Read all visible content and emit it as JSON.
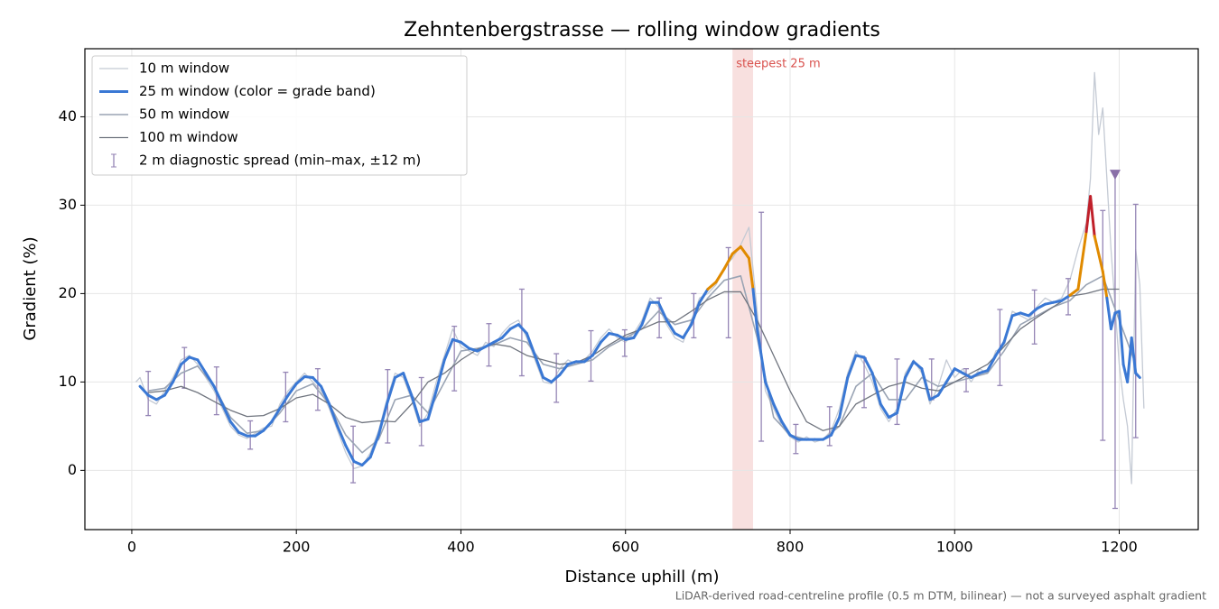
{
  "chart_data": {
    "type": "line",
    "title": "Zehntenbergstrasse — rolling window gradients",
    "x_label": "Distance uphill (m)",
    "y_label": "Gradient (%)",
    "footnote": "LiDAR-derived road-centreline profile (0.5 m DTM, bilinear) — not a surveyed asphalt gradient",
    "xlim": [
      -57,
      1296
    ],
    "ylim": [
      -6.7,
      47.7
    ],
    "xticks": [
      0,
      200,
      400,
      600,
      800,
      1000,
      1200
    ],
    "yticks": [
      0,
      10,
      20,
      30,
      40
    ],
    "grid": true,
    "legend": "upper left",
    "highlight": {
      "label": "steepest 25 m",
      "x0": 730,
      "x1": 755,
      "color": "#d9534f"
    },
    "marker": {
      "x": 1195,
      "y": 33.5,
      "color": "#8a70a8"
    },
    "series": [
      {
        "name": "10 m window",
        "color": "#c4cad4",
        "width": 1.3,
        "x": [
          5,
          10,
          20,
          30,
          40,
          50,
          60,
          70,
          80,
          90,
          100,
          110,
          120,
          130,
          140,
          150,
          160,
          170,
          180,
          190,
          200,
          210,
          220,
          230,
          240,
          250,
          260,
          270,
          280,
          290,
          300,
          310,
          320,
          330,
          340,
          350,
          360,
          370,
          380,
          390,
          400,
          410,
          420,
          430,
          440,
          450,
          460,
          470,
          480,
          490,
          500,
          510,
          520,
          530,
          540,
          550,
          560,
          570,
          580,
          590,
          600,
          610,
          620,
          630,
          640,
          650,
          660,
          670,
          680,
          690,
          700,
          710,
          720,
          730,
          740,
          750,
          760,
          770,
          780,
          790,
          800,
          810,
          820,
          830,
          840,
          850,
          860,
          870,
          880,
          890,
          900,
          910,
          920,
          930,
          940,
          950,
          960,
          970,
          980,
          990,
          1000,
          1010,
          1020,
          1030,
          1040,
          1050,
          1060,
          1070,
          1080,
          1090,
          1100,
          1110,
          1120,
          1130,
          1140,
          1150,
          1160,
          1165,
          1170,
          1175,
          1180,
          1190,
          1200,
          1205,
          1210,
          1215,
          1220,
          1225,
          1230
        ],
        "values": [
          10,
          10.5,
          8,
          7.5,
          9,
          10.5,
          12.5,
          13,
          12,
          10.5,
          9,
          7,
          5,
          4,
          3.6,
          4.2,
          4.8,
          5,
          7.5,
          9,
          10,
          11,
          10,
          9,
          7,
          4.5,
          2,
          0.2,
          0.5,
          2,
          4.5,
          8,
          11,
          10.5,
          8,
          5,
          6.5,
          10,
          13,
          16,
          14,
          13.5,
          13,
          14.5,
          14,
          15.5,
          16.5,
          17,
          15,
          12.5,
          10,
          9.8,
          11.5,
          12.5,
          12,
          12.5,
          13.5,
          15,
          16,
          15,
          14.5,
          15.5,
          17,
          19.5,
          18.5,
          16.5,
          15,
          14.5,
          17,
          19.5,
          20,
          21,
          23,
          24,
          25.5,
          27.5,
          18,
          9,
          7,
          5,
          3.8,
          3.2,
          3.8,
          3.2,
          3.5,
          4.5,
          7,
          11,
          13.5,
          12,
          10,
          7,
          5.5,
          7,
          11,
          12.5,
          11,
          7.5,
          9.5,
          12.5,
          10.5,
          11.5,
          10,
          11.5,
          11,
          13.5,
          14,
          18,
          17.5,
          17,
          18.5,
          19.5,
          19,
          19.5,
          21.5,
          25,
          28,
          33,
          45,
          38,
          41,
          25,
          12,
          8,
          5,
          -1.5,
          25,
          21,
          7
        ]
      },
      {
        "name": "25 m window (color = grade band)",
        "color": "#3a78d4",
        "width": 3,
        "bands": [
          {
            "below": 20,
            "color": "#3a78d4"
          },
          {
            "below": 25,
            "color": "#e08a00"
          },
          {
            "color": "#c0202a"
          }
        ],
        "x": [
          10,
          20,
          30,
          40,
          50,
          60,
          70,
          80,
          90,
          100,
          110,
          120,
          130,
          140,
          150,
          160,
          170,
          180,
          190,
          200,
          210,
          220,
          230,
          240,
          250,
          260,
          270,
          280,
          290,
          300,
          310,
          320,
          330,
          340,
          350,
          360,
          370,
          380,
          390,
          400,
          410,
          420,
          430,
          440,
          450,
          460,
          470,
          480,
          490,
          500,
          510,
          520,
          530,
          540,
          550,
          560,
          570,
          580,
          590,
          600,
          610,
          620,
          630,
          640,
          650,
          660,
          670,
          680,
          690,
          700,
          710,
          720,
          730,
          740,
          750,
          755,
          760,
          770,
          780,
          790,
          800,
          810,
          820,
          830,
          840,
          850,
          860,
          870,
          880,
          890,
          900,
          910,
          920,
          930,
          940,
          950,
          960,
          970,
          980,
          990,
          1000,
          1010,
          1020,
          1030,
          1040,
          1050,
          1060,
          1070,
          1080,
          1090,
          1100,
          1110,
          1120,
          1130,
          1140,
          1150,
          1160,
          1165,
          1170,
          1180,
          1185,
          1190,
          1195,
          1200,
          1205,
          1210,
          1215,
          1220,
          1225
        ],
        "values": [
          9.5,
          8.5,
          8,
          8.5,
          10,
          12,
          12.8,
          12.5,
          11,
          9.5,
          7.5,
          5.5,
          4.3,
          3.9,
          3.9,
          4.5,
          5.5,
          7,
          8.5,
          9.8,
          10.6,
          10.5,
          9.5,
          7.5,
          5,
          2.8,
          1,
          0.6,
          1.5,
          4,
          7.5,
          10.5,
          11,
          8.5,
          5.5,
          5.8,
          9,
          12.5,
          14.8,
          14.5,
          13.8,
          13.5,
          14,
          14.5,
          15,
          16,
          16.5,
          15.5,
          13,
          10.5,
          10,
          10.8,
          12,
          12.3,
          12.3,
          13,
          14.5,
          15.5,
          15.3,
          14.8,
          15,
          16.5,
          19,
          19,
          17,
          15.5,
          15,
          16.5,
          19,
          20.5,
          21.3,
          22.8,
          24.5,
          25.3,
          24,
          20.5,
          16,
          10,
          7.5,
          5.5,
          4,
          3.5,
          3.5,
          3.5,
          3.5,
          4,
          6,
          10.5,
          13,
          12.8,
          11,
          7.5,
          6,
          6.5,
          10.5,
          12.3,
          11.5,
          8,
          8.5,
          10,
          11.5,
          11,
          10.5,
          11,
          11.3,
          13,
          14.5,
          17.5,
          17.8,
          17.5,
          18.3,
          18.8,
          19,
          19.2,
          19.8,
          20.5,
          27,
          31,
          26.5,
          22.5,
          19.5,
          16,
          17.8,
          18,
          12,
          10,
          15,
          11,
          10.5
        ]
      },
      {
        "name": "50 m window",
        "color": "#9aa4b4",
        "width": 1.6,
        "x": [
          20,
          40,
          60,
          80,
          100,
          120,
          140,
          160,
          180,
          200,
          220,
          240,
          260,
          280,
          300,
          320,
          340,
          360,
          380,
          400,
          420,
          440,
          460,
          480,
          500,
          520,
          540,
          560,
          580,
          600,
          620,
          640,
          660,
          680,
          700,
          720,
          740,
          760,
          780,
          800,
          820,
          840,
          860,
          880,
          900,
          920,
          940,
          960,
          980,
          1000,
          1020,
          1040,
          1060,
          1080,
          1100,
          1120,
          1140,
          1160,
          1180,
          1200,
          1220
        ],
        "values": [
          9,
          9.3,
          11,
          11.8,
          9.5,
          6,
          4.2,
          4.5,
          6.5,
          9,
          9.8,
          7.5,
          4,
          2,
          3.5,
          8,
          8.5,
          6.5,
          10,
          13.5,
          13.8,
          14.2,
          15,
          14.5,
          12,
          11.5,
          12,
          12.5,
          14,
          15,
          16,
          18,
          16.5,
          17,
          19.5,
          21.5,
          22,
          15,
          6,
          4,
          3.5,
          3.5,
          5,
          9.5,
          11,
          8,
          8,
          10.5,
          9.5,
          10,
          10.5,
          11,
          13.5,
          16.5,
          17.5,
          18.5,
          19.2,
          21,
          22,
          17,
          12
        ]
      },
      {
        "name": "100 m window",
        "color": "#70757f",
        "width": 1.3,
        "x": [
          20,
          40,
          60,
          80,
          100,
          120,
          140,
          160,
          180,
          200,
          220,
          240,
          260,
          280,
          300,
          320,
          340,
          360,
          380,
          400,
          420,
          440,
          460,
          480,
          500,
          520,
          540,
          560,
          580,
          600,
          620,
          640,
          660,
          680,
          700,
          720,
          740,
          760,
          780,
          800,
          820,
          840,
          860,
          880,
          900,
          920,
          940,
          960,
          980,
          1000,
          1020,
          1040,
          1060,
          1080,
          1100,
          1120,
          1140,
          1160,
          1180,
          1200
        ],
        "values": [
          8.8,
          9,
          9.5,
          8.8,
          7.8,
          6.8,
          6.1,
          6.2,
          7,
          8.2,
          8.6,
          7.5,
          6,
          5.4,
          5.6,
          5.5,
          7.5,
          10,
          11,
          12.5,
          13.7,
          14.3,
          14,
          13,
          12.5,
          12,
          12.2,
          13,
          14.2,
          15.3,
          16,
          16.8,
          16.8,
          18,
          19.3,
          20.2,
          20.2,
          17,
          13,
          9,
          5.5,
          4.5,
          5,
          7.5,
          8.5,
          9.5,
          10,
          9.3,
          9,
          10,
          11,
          12,
          14,
          16,
          17.3,
          18.5,
          19.7,
          20,
          20.5,
          20.5
        ]
      },
      {
        "name": "2 m diagnostic spread (min–max, ±12 m)",
        "color": "#9585b5",
        "kind": "errorbar",
        "x": [
          20,
          64,
          103,
          144,
          187,
          226,
          269,
          311,
          352,
          392,
          434,
          474,
          516,
          558,
          599,
          641,
          683,
          725,
          765,
          807,
          848,
          890,
          930,
          972,
          1014,
          1055,
          1097,
          1138,
          1180,
          1195,
          1220
        ],
        "low": [
          6.2,
          9.3,
          6.3,
          2.4,
          5.5,
          6.8,
          -1.4,
          3.1,
          2.8,
          9,
          11.8,
          10.7,
          7.7,
          10.1,
          12.9,
          15,
          15,
          15,
          3.3,
          1.9,
          2.8,
          7.1,
          5.2,
          8,
          8.9,
          9.6,
          14.3,
          17.6,
          3.4,
          -4.3,
          3.7
        ],
        "high": [
          11.2,
          13.9,
          11.7,
          5.6,
          11.1,
          11.5,
          5,
          11.4,
          10.5,
          16.3,
          16.6,
          20.5,
          13.2,
          15.8,
          15.9,
          19.5,
          20,
          25.2,
          29.2,
          5.2,
          7.2,
          12.7,
          12.6,
          12.6,
          11.5,
          18.2,
          20.4,
          21.7,
          29.4,
          33.5,
          30.1
        ]
      }
    ]
  }
}
